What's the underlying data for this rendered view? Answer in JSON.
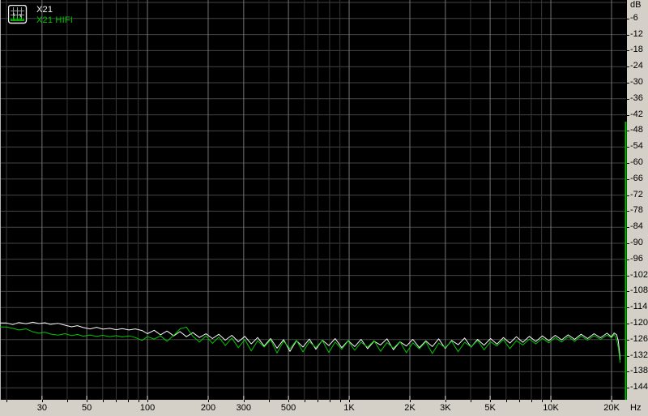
{
  "legend": {
    "icon": "spectrum-icon",
    "items": [
      {
        "label": "X21",
        "color": "#f8f8f8"
      },
      {
        "label": "X21 HIFI",
        "color": "#00c800"
      }
    ]
  },
  "colors": {
    "background": "#000000",
    "grid_minor": "#383838",
    "grid_major": "#757575",
    "grid_horizontal": "#454545",
    "axis_strip": "#d4d0c8",
    "axis_text": "#000000",
    "plot_left_border": "#b4b4b4",
    "plot_right_edge_line": "#00c000",
    "bottom_edge_tick": "#e0e0e0",
    "trace_white": "#f8f8f8",
    "trace_green": "#00c800"
  },
  "axes": {
    "x": {
      "unit": "Hz",
      "scale": "log",
      "gridlines_hz": [
        20,
        30,
        40,
        50,
        60,
        70,
        80,
        90,
        100,
        200,
        300,
        400,
        500,
        600,
        700,
        800,
        900,
        1000,
        2000,
        3000,
        4000,
        5000,
        6000,
        7000,
        8000,
        9000,
        10000,
        20000
      ],
      "ticks": [
        {
          "hz": 30,
          "label": "30"
        },
        {
          "hz": 50,
          "label": "50"
        },
        {
          "hz": 100,
          "label": "100"
        },
        {
          "hz": 200,
          "label": "200"
        },
        {
          "hz": 300,
          "label": "300"
        },
        {
          "hz": 500,
          "label": "500"
        },
        {
          "hz": 1000,
          "label": "1K"
        },
        {
          "hz": 2000,
          "label": "2K"
        },
        {
          "hz": 3000,
          "label": "3K"
        },
        {
          "hz": 5000,
          "label": "5K"
        },
        {
          "hz": 10000,
          "label": "10K"
        },
        {
          "hz": 20000,
          "label": "20K"
        }
      ]
    },
    "y": {
      "unit": "dB",
      "min": -144,
      "max": 0,
      "step": 6,
      "labels": [
        "dB",
        "-6",
        "-12",
        "-18",
        "-24",
        "-30",
        "-36",
        "-42",
        "-48",
        "-54",
        "-60",
        "-66",
        "-72",
        "-78",
        "-84",
        "-90",
        "-96",
        "-102",
        "-108",
        "-114",
        "-120",
        "-126",
        "-132",
        "-138",
        "-144"
      ]
    }
  },
  "chart_data": {
    "type": "line",
    "title": "",
    "xlabel": "Hz",
    "ylabel": "dB",
    "x_axis": {
      "scale": "log",
      "min": 20,
      "max": 22050,
      "unit": "Hz"
    },
    "y_axis": {
      "min": -144,
      "max": 0,
      "tick_step": 6,
      "unit": "dB"
    },
    "grid": true,
    "legend_position": "top-left",
    "series": [
      {
        "name": "X21",
        "color": "#f8f8f8",
        "points": [
          [
            18.6,
            -119.8
          ],
          [
            20,
            -119.8
          ],
          [
            21.5,
            -120.4
          ],
          [
            23,
            -119.6
          ],
          [
            25,
            -120.1
          ],
          [
            27,
            -119.5
          ],
          [
            29,
            -120.0
          ],
          [
            31,
            -119.7
          ],
          [
            33,
            -120.3
          ],
          [
            36,
            -119.9
          ],
          [
            39,
            -120.6
          ],
          [
            42,
            -121.2
          ],
          [
            45,
            -120.8
          ],
          [
            48,
            -121.5
          ],
          [
            52,
            -122.0
          ],
          [
            56,
            -121.4
          ],
          [
            60,
            -122.1
          ],
          [
            65,
            -121.8
          ],
          [
            70,
            -122.3
          ],
          [
            75,
            -121.9
          ],
          [
            81,
            -122.4
          ],
          [
            87,
            -122.0
          ],
          [
            94,
            -122.6
          ],
          [
            100,
            -123.8
          ],
          [
            108,
            -122.5
          ],
          [
            116,
            -124.2
          ],
          [
            125,
            -122.8
          ],
          [
            135,
            -124.6
          ],
          [
            145,
            -123.0
          ],
          [
            156,
            -124.9
          ],
          [
            168,
            -123.4
          ],
          [
            181,
            -125.2
          ],
          [
            195,
            -123.8
          ],
          [
            210,
            -125.6
          ],
          [
            226,
            -124.0
          ],
          [
            243,
            -126.2
          ],
          [
            262,
            -124.4
          ],
          [
            282,
            -126.8
          ],
          [
            304,
            -124.8
          ],
          [
            327,
            -127.6
          ],
          [
            352,
            -125.2
          ],
          [
            379,
            -128.4
          ],
          [
            408,
            -125.6
          ],
          [
            439,
            -129.2
          ],
          [
            473,
            -126.0
          ],
          [
            509,
            -130.4
          ],
          [
            548,
            -126.4
          ],
          [
            590,
            -128.8
          ],
          [
            635,
            -125.8
          ],
          [
            684,
            -129.6
          ],
          [
            736,
            -126.2
          ],
          [
            793,
            -128.2
          ],
          [
            853,
            -125.6
          ],
          [
            919,
            -129.0
          ],
          [
            989,
            -126.4
          ],
          [
            1065,
            -128.6
          ],
          [
            1146,
            -125.9
          ],
          [
            1234,
            -129.4
          ],
          [
            1329,
            -126.6
          ],
          [
            1431,
            -128.0
          ],
          [
            1540,
            -125.7
          ],
          [
            1658,
            -129.8
          ],
          [
            1785,
            -126.8
          ],
          [
            1922,
            -128.4
          ],
          [
            2069,
            -125.9
          ],
          [
            2228,
            -129.0
          ],
          [
            2399,
            -126.5
          ],
          [
            2583,
            -128.6
          ],
          [
            2781,
            -125.7
          ],
          [
            2994,
            -129.3
          ],
          [
            3224,
            -126.3
          ],
          [
            3471,
            -127.9
          ],
          [
            3737,
            -125.4
          ],
          [
            4023,
            -128.8
          ],
          [
            4332,
            -125.9
          ],
          [
            4664,
            -128.1
          ],
          [
            5022,
            -125.6
          ],
          [
            5407,
            -127.7
          ],
          [
            5822,
            -125.2
          ],
          [
            6268,
            -127.3
          ],
          [
            6749,
            -124.9
          ],
          [
            7266,
            -127.0
          ],
          [
            7823,
            -124.8
          ],
          [
            8423,
            -126.7
          ],
          [
            9069,
            -124.6
          ],
          [
            9765,
            -126.4
          ],
          [
            10513,
            -124.4
          ],
          [
            11319,
            -126.1
          ],
          [
            12187,
            -124.2
          ],
          [
            13121,
            -125.9
          ],
          [
            14127,
            -124.0
          ],
          [
            15210,
            -125.6
          ],
          [
            16376,
            -123.8
          ],
          [
            17632,
            -125.3
          ],
          [
            18984,
            -123.6
          ],
          [
            20000,
            -125.0
          ],
          [
            20600,
            -123.5
          ],
          [
            21200,
            -124.2
          ],
          [
            21600,
            -126.5
          ],
          [
            21900,
            -130.5
          ],
          [
            22050,
            -133.5
          ]
        ]
      },
      {
        "name": "X21 HIFI",
        "color": "#00c800",
        "points": [
          [
            18.6,
            -121.3
          ],
          [
            20,
            -121.3
          ],
          [
            21.5,
            -121.8
          ],
          [
            23,
            -122.4
          ],
          [
            25,
            -122.0
          ],
          [
            27,
            -123.1
          ],
          [
            29,
            -123.6
          ],
          [
            31,
            -123.2
          ],
          [
            33,
            -123.9
          ],
          [
            36,
            -124.3
          ],
          [
            39,
            -123.8
          ],
          [
            42,
            -124.5
          ],
          [
            45,
            -124.1
          ],
          [
            48,
            -124.7
          ],
          [
            52,
            -124.3
          ],
          [
            56,
            -124.8
          ],
          [
            60,
            -124.4
          ],
          [
            65,
            -124.9
          ],
          [
            70,
            -124.5
          ],
          [
            75,
            -125.0
          ],
          [
            81,
            -124.6
          ],
          [
            87,
            -125.2
          ],
          [
            94,
            -126.3
          ],
          [
            100,
            -124.9
          ],
          [
            108,
            -125.8
          ],
          [
            116,
            -124.6
          ],
          [
            125,
            -126.6
          ],
          [
            135,
            -124.4
          ],
          [
            145,
            -122.0
          ],
          [
            156,
            -121.3
          ],
          [
            168,
            -124.8
          ],
          [
            181,
            -126.9
          ],
          [
            195,
            -124.6
          ],
          [
            210,
            -127.4
          ],
          [
            226,
            -125.0
          ],
          [
            243,
            -128.2
          ],
          [
            262,
            -125.4
          ],
          [
            282,
            -129.0
          ],
          [
            304,
            -126.0
          ],
          [
            327,
            -130.2
          ],
          [
            352,
            -126.4
          ],
          [
            379,
            -128.8
          ],
          [
            408,
            -126.0
          ],
          [
            439,
            -131.0
          ],
          [
            473,
            -126.6
          ],
          [
            509,
            -129.4
          ],
          [
            548,
            -126.2
          ],
          [
            590,
            -130.6
          ],
          [
            635,
            -126.8
          ],
          [
            684,
            -129.0
          ],
          [
            736,
            -126.3
          ],
          [
            793,
            -130.8
          ],
          [
            853,
            -126.9
          ],
          [
            919,
            -129.6
          ],
          [
            989,
            -126.5
          ],
          [
            1065,
            -130.0
          ],
          [
            1146,
            -127.0
          ],
          [
            1234,
            -128.8
          ],
          [
            1329,
            -126.4
          ],
          [
            1431,
            -130.4
          ],
          [
            1540,
            -127.1
          ],
          [
            1658,
            -129.2
          ],
          [
            1785,
            -126.7
          ],
          [
            1922,
            -130.9
          ],
          [
            2069,
            -127.2
          ],
          [
            2228,
            -129.5
          ],
          [
            2399,
            -126.8
          ],
          [
            2583,
            -131.2
          ],
          [
            2781,
            -127.3
          ],
          [
            2994,
            -129.0
          ],
          [
            3224,
            -126.6
          ],
          [
            3471,
            -130.5
          ],
          [
            3737,
            -127.0
          ],
          [
            4023,
            -128.7
          ],
          [
            4332,
            -126.3
          ],
          [
            4664,
            -129.8
          ],
          [
            5022,
            -126.8
          ],
          [
            5407,
            -128.4
          ],
          [
            5822,
            -126.0
          ],
          [
            6268,
            -129.4
          ],
          [
            6749,
            -126.4
          ],
          [
            7266,
            -128.0
          ],
          [
            7823,
            -125.8
          ],
          [
            8423,
            -127.6
          ],
          [
            9069,
            -125.5
          ],
          [
            9765,
            -127.2
          ],
          [
            10513,
            -125.2
          ],
          [
            11319,
            -126.9
          ],
          [
            12187,
            -124.9
          ],
          [
            13121,
            -126.6
          ],
          [
            14127,
            -124.7
          ],
          [
            15210,
            -126.2
          ],
          [
            16376,
            -124.5
          ],
          [
            17632,
            -125.9
          ],
          [
            18984,
            -124.3
          ],
          [
            20000,
            -125.4
          ],
          [
            20600,
            -124.0
          ],
          [
            21200,
            -126.0
          ],
          [
            21600,
            -129.0
          ],
          [
            21900,
            -132.5
          ],
          [
            22050,
            -134.5
          ]
        ]
      }
    ]
  }
}
